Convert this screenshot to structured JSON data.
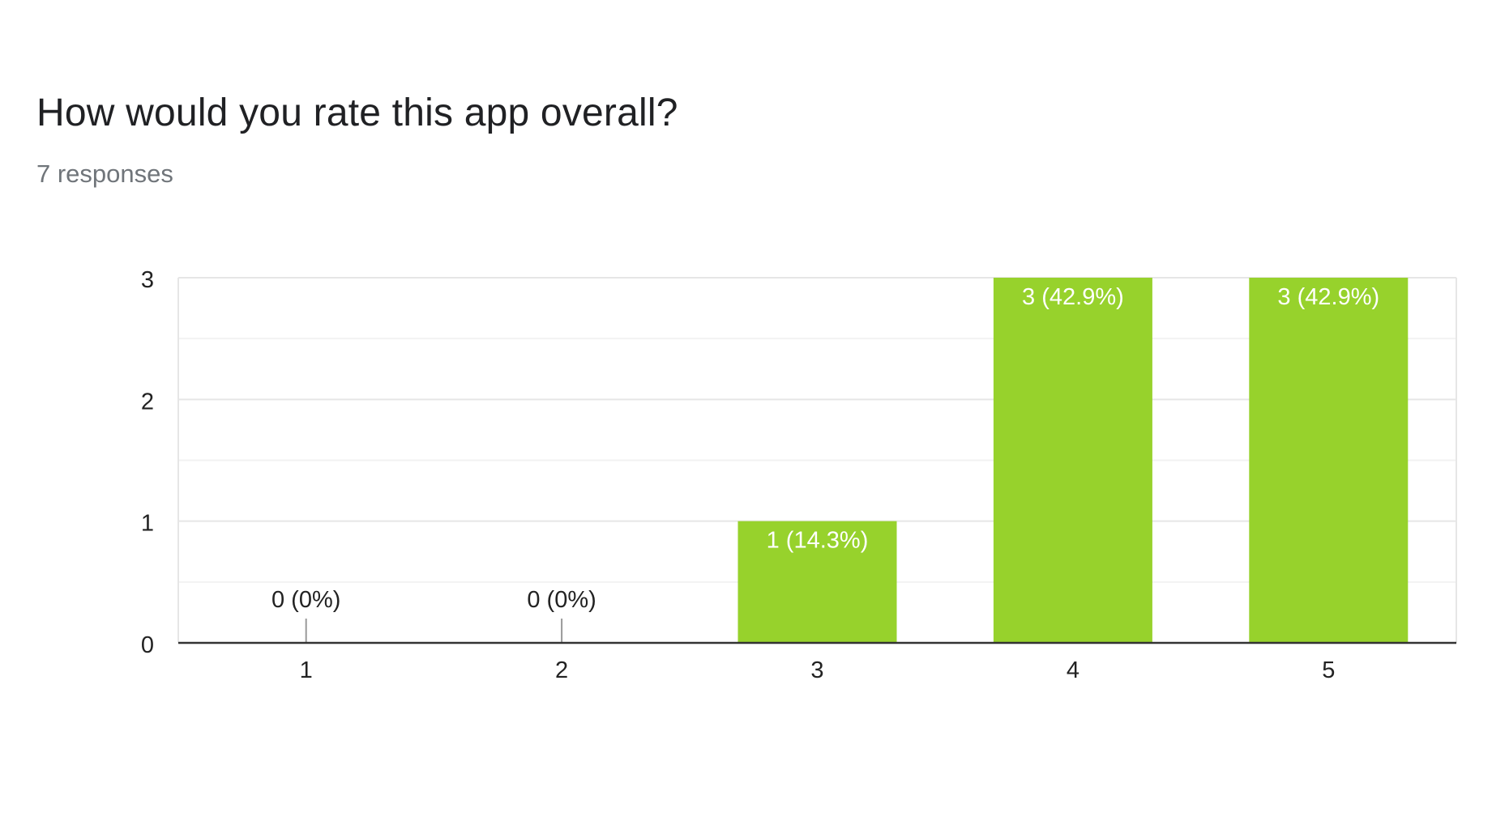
{
  "question": {
    "title": "How would you rate this app overall?",
    "responses": "7 responses"
  },
  "colors": {
    "bar": "#97d22c",
    "grid_major": "#e6e6e6",
    "grid_minor": "#f2f2f2",
    "baseline": "#333333",
    "tick_text": "#222222",
    "label_inside": "#ffffff",
    "label_outside": "#222222",
    "zero_tick": "#999999"
  },
  "chart_data": {
    "type": "bar",
    "title": "How would you rate this app overall?",
    "subtitle": "7 responses",
    "categories": [
      "1",
      "2",
      "3",
      "4",
      "5"
    ],
    "values": [
      0,
      0,
      1,
      3,
      3
    ],
    "data_labels": [
      "0 (0%)",
      "0 (0%)",
      "1 (14.3%)",
      "3 (42.9%)",
      "3 (42.9%)"
    ],
    "xlabel": "",
    "ylabel": "",
    "ylim": [
      0,
      3
    ],
    "yticks": [
      "0",
      "1",
      "2",
      "3"
    ],
    "grid": true,
    "legend": "none"
  }
}
